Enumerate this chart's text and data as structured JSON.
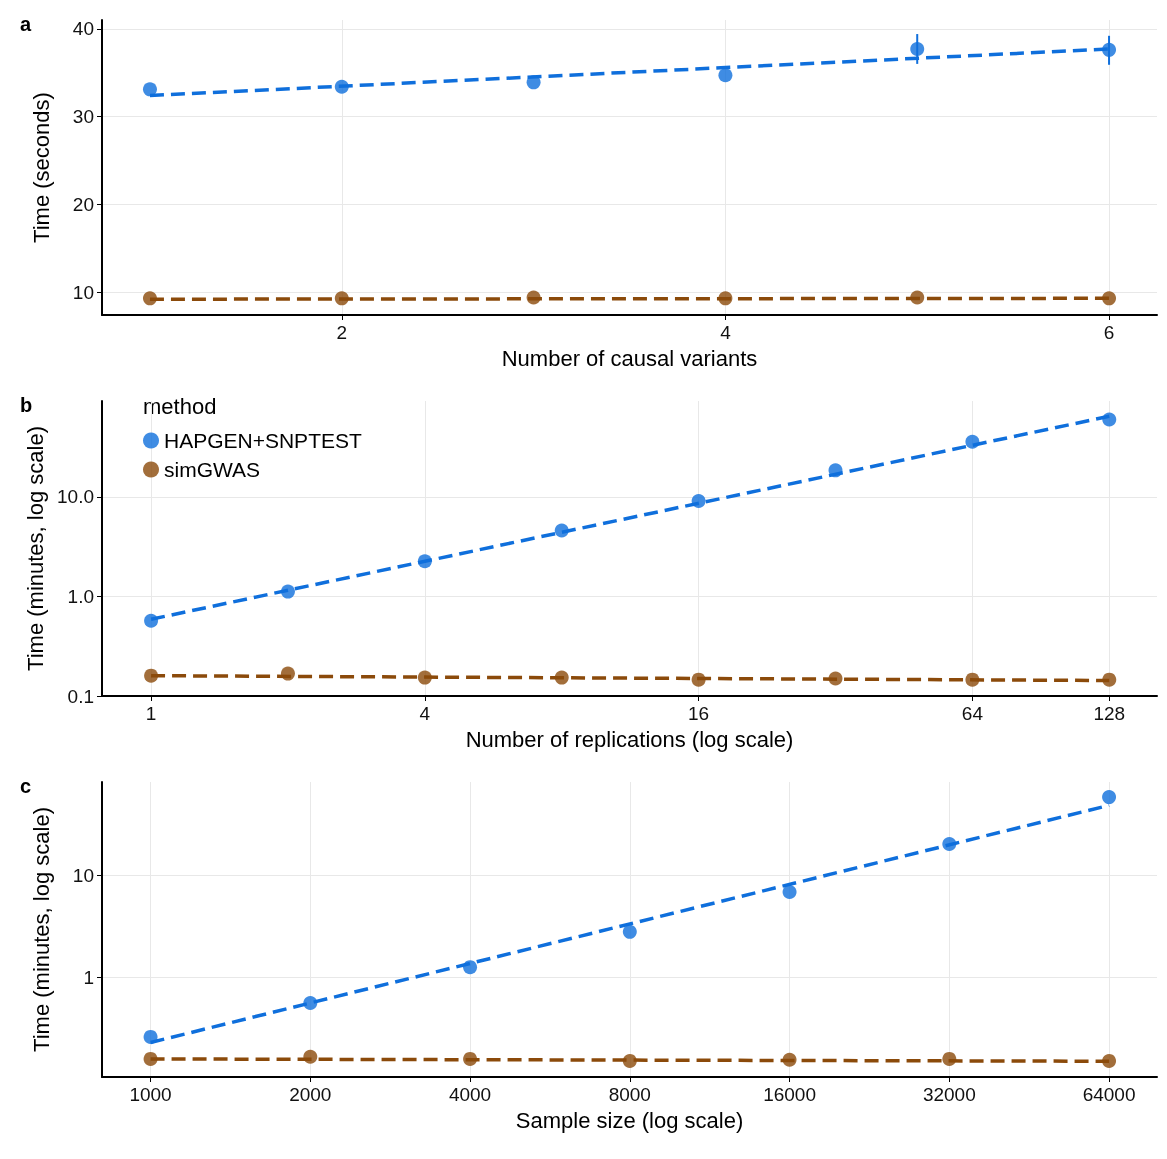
{
  "chart_data": [
    {
      "type": "scatter",
      "annotations": [
        "a"
      ],
      "xlabel": "Number of causal variants",
      "ylabel": "Time (seconds)",
      "x": [
        1,
        2,
        3,
        4,
        5,
        6
      ],
      "xlim": [
        0.75,
        6.25
      ],
      "xticks": [
        2,
        4,
        6
      ],
      "ylim": [
        7.4,
        41
      ],
      "yticks": [
        10,
        20,
        30,
        40
      ],
      "grid": true,
      "marker": "circle",
      "legend": false,
      "series": [
        {
          "color": "#0f6fdc",
          "values": [
            33.1,
            33.4,
            33.9,
            34.7,
            37.7,
            37.6
          ],
          "errors": [
            null,
            null,
            null,
            null,
            [
              36.0,
              39.4
            ],
            [
              35.9,
              39.2
            ]
          ]
        },
        {
          "color": "#8b4a0a",
          "values": [
            9.3,
            9.3,
            9.4,
            9.3,
            9.4,
            9.3
          ]
        },
        {
          "type": "line",
          "color": "#0f6fdc",
          "x": [
            1,
            6
          ],
          "values": [
            32.4,
            37.7
          ],
          "line_style": "dashed",
          "marker": "none"
        },
        {
          "type": "line",
          "color": "#8b4a0a",
          "x": [
            1,
            6
          ],
          "values": [
            9.2,
            9.3
          ],
          "line_style": "dashed",
          "marker": "none"
        }
      ]
    },
    {
      "type": "scatter",
      "annotations": [
        "b"
      ],
      "xlabel": "Number of replications (log scale)",
      "ylabel": "Time (minutes, log scale)",
      "log": "xy",
      "x": [
        1,
        2,
        4,
        8,
        16,
        32,
        64,
        128
      ],
      "xlim": [
        0.78,
        163
      ],
      "xticks": [
        1,
        4,
        16,
        64,
        128
      ],
      "ylim": [
        0.1,
        92
      ],
      "yticks": [
        {
          "value": 0.1,
          "label": "0.1"
        },
        {
          "value": 1,
          "label": "1.0"
        },
        {
          "value": 10,
          "label": "10.0"
        }
      ],
      "grid": true,
      "marker": "circle",
      "legend": "top left",
      "legend_title": "method",
      "series": [
        {
          "name": "HAPGEN+SNPTEST",
          "color": "#0f6fdc",
          "values": [
            0.57,
            1.12,
            2.26,
            4.6,
            9.1,
            18.5,
            35.8,
            60
          ]
        },
        {
          "name": "simGWAS",
          "color": "#8b4a0a",
          "values": [
            0.16,
            0.168,
            0.153,
            0.153,
            0.146,
            0.15,
            0.146,
            0.146
          ]
        },
        {
          "type": "line",
          "color": "#0f6fdc",
          "x": [
            1,
            128
          ],
          "values": [
            0.59,
            64.6
          ],
          "line_style": "dashed",
          "marker": "none"
        },
        {
          "type": "line",
          "color": "#8b4a0a",
          "x": [
            1,
            128
          ],
          "values": [
            0.16,
            0.143
          ],
          "line_style": "dashed",
          "marker": "none"
        }
      ]
    },
    {
      "type": "scatter",
      "annotations": [
        "c"
      ],
      "xlabel": "Sample size (log scale)",
      "ylabel": "Time (minutes, log scale)",
      "log": "xy",
      "x": [
        1000,
        2000,
        4000,
        8000,
        16000,
        32000,
        64000
      ],
      "xlim": [
        810,
        78800
      ],
      "xticks": [
        1000,
        2000,
        4000,
        8000,
        16000,
        32000,
        64000
      ],
      "ylim": [
        0.105,
        83
      ],
      "yticks": [
        1,
        10
      ],
      "grid": true,
      "marker": "circle",
      "legend": false,
      "series": [
        {
          "color": "#0f6fdc",
          "values": [
            0.26,
            0.56,
            1.26,
            2.8,
            6.9,
            20.4,
            59
          ]
        },
        {
          "color": "#8b4a0a",
          "values": [
            0.158,
            0.166,
            0.158,
            0.151,
            0.155,
            0.158,
            0.151
          ]
        },
        {
          "type": "line",
          "color": "#0f6fdc",
          "x": [
            1000,
            64000
          ],
          "values": [
            0.229,
            49
          ],
          "line_style": "dashed",
          "marker": "none"
        },
        {
          "type": "line",
          "color": "#8b4a0a",
          "x": [
            1000,
            64000
          ],
          "values": [
            0.158,
            0.15
          ],
          "line_style": "dashed",
          "marker": "none"
        }
      ]
    }
  ]
}
